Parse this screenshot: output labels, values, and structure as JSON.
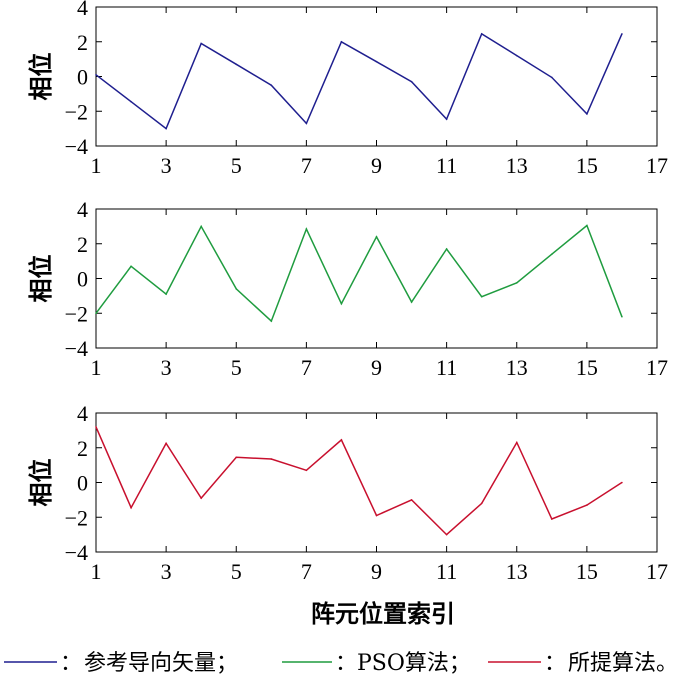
{
  "chart_data": [
    {
      "type": "line",
      "ylabel": "相位",
      "xlim": [
        1,
        17
      ],
      "ylim": [
        -4,
        4
      ],
      "xticks": [
        1,
        3,
        5,
        7,
        9,
        11,
        13,
        15,
        17
      ],
      "yticks": [
        4,
        2,
        0,
        -2,
        -4
      ],
      "series": [
        {
          "name": "参考导向矢量",
          "color": "#1f1f8f",
          "x": [
            1,
            2,
            3,
            4,
            5,
            6,
            7,
            8,
            9,
            10,
            11,
            12,
            13,
            14,
            15,
            16
          ],
          "values": [
            0.1,
            -1.45,
            -3.0,
            1.9,
            0.7,
            -0.5,
            -2.7,
            2.0,
            0.85,
            -0.3,
            -2.45,
            2.45,
            1.2,
            -0.05,
            -2.15,
            2.45
          ]
        }
      ]
    },
    {
      "type": "line",
      "ylabel": "相位",
      "xlim": [
        1,
        17
      ],
      "ylim": [
        -4,
        4
      ],
      "xticks": [
        1,
        3,
        5,
        7,
        9,
        11,
        13,
        15,
        17
      ],
      "yticks": [
        4,
        2,
        0,
        -2,
        -4
      ],
      "series": [
        {
          "name": "PSO算法",
          "color": "#1f9c3f",
          "x": [
            1,
            2,
            3,
            4,
            5,
            6,
            7,
            8,
            9,
            10,
            11,
            12,
            13,
            14,
            15,
            16
          ],
          "values": [
            -2.0,
            0.7,
            -0.9,
            3.0,
            -0.6,
            -2.45,
            2.85,
            -1.45,
            2.4,
            -1.35,
            1.7,
            -1.05,
            -0.25,
            1.4,
            3.05,
            -2.2
          ]
        }
      ]
    },
    {
      "type": "line",
      "xlabel": "阵元位置索引",
      "ylabel": "相位",
      "xlim": [
        1,
        17
      ],
      "ylim": [
        -4,
        4
      ],
      "xticks": [
        1,
        3,
        5,
        7,
        9,
        11,
        13,
        15,
        17
      ],
      "yticks": [
        4,
        2,
        0,
        -2,
        -4
      ],
      "series": [
        {
          "name": "所提算法",
          "color": "#c8102e",
          "x": [
            1,
            2,
            3,
            4,
            5,
            6,
            7,
            8,
            9,
            10,
            11,
            12,
            13,
            14,
            15,
            16
          ],
          "values": [
            3.2,
            -1.45,
            2.25,
            -0.9,
            1.45,
            1.35,
            0.7,
            2.45,
            -1.9,
            -1.0,
            -3.0,
            -1.2,
            2.3,
            -2.1,
            -1.3,
            0.0
          ]
        }
      ]
    }
  ],
  "legend": {
    "separator": "：",
    "items": [
      {
        "text": "参考导向矢量；",
        "color": "#1f1f8f"
      },
      {
        "text": "PSO算法；",
        "color": "#1f9c3f"
      },
      {
        "text": "所提算法。",
        "color": "#c8102e"
      }
    ]
  }
}
